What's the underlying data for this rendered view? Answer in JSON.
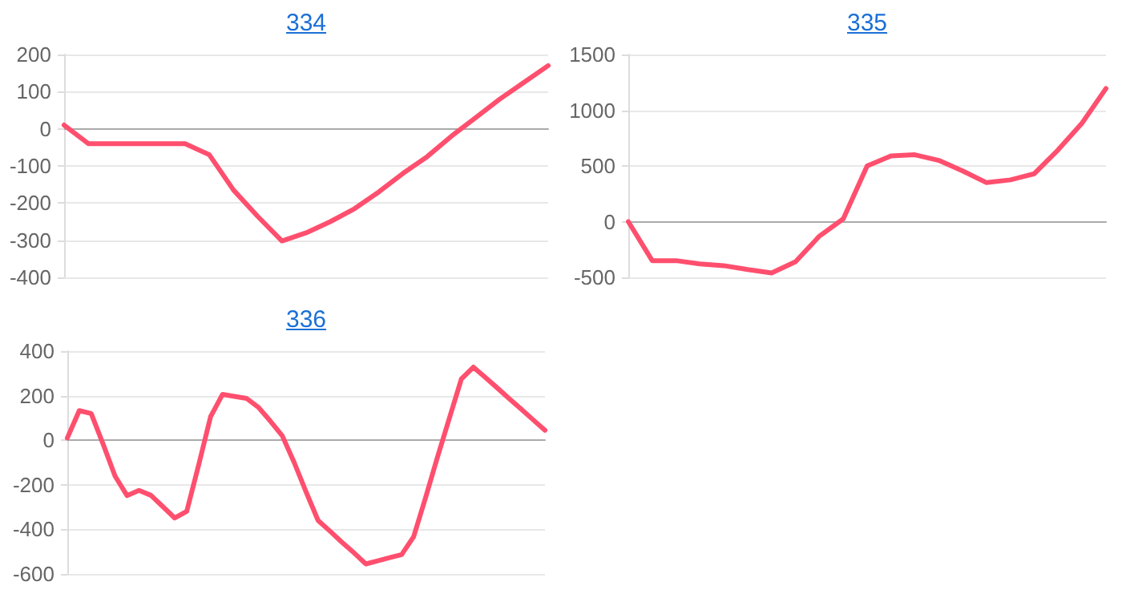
{
  "chart_data": [
    {
      "type": "line",
      "title": "334",
      "categories": [
        null,
        null,
        null,
        null,
        null,
        null,
        null,
        null,
        null,
        null,
        null,
        null,
        null,
        null,
        null,
        null,
        null,
        null,
        null,
        null,
        null
      ],
      "color": "#ff4f6e",
      "marker": "none",
      "grid": "y",
      "values": [
        10,
        -40,
        -40,
        -40,
        -40,
        -40,
        -70,
        -165,
        -236,
        -302,
        -280,
        -250,
        -215,
        -170,
        -120,
        -75,
        -20,
        30,
        80,
        125,
        170
      ],
      "ylim": [
        -400,
        200
      ],
      "yticks": [
        -400,
        -300,
        -200,
        -100,
        0,
        100,
        200
      ]
    },
    {
      "type": "line",
      "title": "335",
      "categories": [
        null,
        null,
        null,
        null,
        null,
        null,
        null,
        null,
        null,
        null,
        null,
        null,
        null,
        null,
        null,
        null,
        null,
        null,
        null,
        null,
        null
      ],
      "color": "#ff4f6e",
      "marker": "none",
      "grid": "y",
      "values": [
        0,
        -350,
        -350,
        -380,
        -395,
        -430,
        -460,
        -360,
        -130,
        25,
        500,
        590,
        600,
        550,
        455,
        350,
        375,
        430,
        645,
        885,
        1195
      ],
      "ylim": [
        -500,
        1500
      ],
      "yticks": [
        -500,
        0,
        500,
        1000,
        1500
      ]
    },
    {
      "type": "line",
      "title": "336",
      "categories": [
        null,
        null,
        null,
        null,
        null,
        null,
        null,
        null,
        null,
        null,
        null,
        null,
        null,
        null,
        null,
        null,
        null,
        null,
        null,
        null,
        null,
        null,
        null,
        null,
        null,
        null,
        null,
        null,
        null,
        null,
        null,
        null,
        null,
        null,
        null,
        null,
        null,
        null,
        null,
        null,
        null
      ],
      "color": "#ff4f6e",
      "marker": "none",
      "grid": "y",
      "values": [
        10,
        133,
        120,
        -18,
        -161,
        -248,
        -225,
        -247,
        -298,
        -349,
        -319,
        -111,
        106,
        206,
        197,
        188,
        148,
        86,
        20,
        -100,
        -233,
        -360,
        -408,
        -458,
        -505,
        -555,
        -541,
        -527,
        -513,
        -433,
        -258,
        -75,
        100,
        275,
        328,
        282,
        235,
        187,
        140,
        92,
        45
      ],
      "ylim": [
        -600,
        400
      ],
      "yticks": [
        -600,
        -400,
        -200,
        0,
        200,
        400
      ]
    }
  ]
}
